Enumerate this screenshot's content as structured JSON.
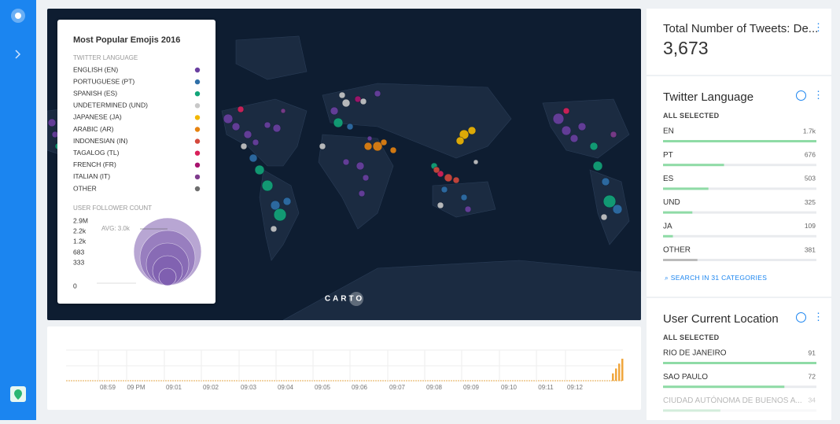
{
  "map_legend": {
    "title": "Most Popular Emojis 2016",
    "language_heading": "TWITTER LANGUAGE",
    "languages": [
      {
        "label": "ENGLISH (EN)",
        "color": "#6a3fa0"
      },
      {
        "label": "PORTUGUESE (PT)",
        "color": "#2f6fa8"
      },
      {
        "label": "SPANISH (ES)",
        "color": "#12a579"
      },
      {
        "label": "UNDETERMINED (UND)",
        "color": "#c8c8c8"
      },
      {
        "label": "JAPANESE (JA)",
        "color": "#f2b701"
      },
      {
        "label": "ARABIC (AR)",
        "color": "#e68310"
      },
      {
        "label": "INDONESIAN (IN)",
        "color": "#d4483c"
      },
      {
        "label": "TAGALOG (TL)",
        "color": "#d9205a"
      },
      {
        "label": "FRENCH (FR)",
        "color": "#a8136e"
      },
      {
        "label": "ITALIAN (IT)",
        "color": "#7f3c8d"
      },
      {
        "label": "OTHER",
        "color": "#6e6e6e"
      }
    ],
    "size_heading": "USER FOLLOWER COUNT",
    "size_labels": [
      "2.9M",
      "2.2k",
      "1.2k",
      "683",
      "333",
      "0"
    ],
    "average": "AVG: 3.0k"
  },
  "map_logo": "CARTO",
  "timeline": {
    "time_labels": [
      "08:59",
      "09 PM",
      "09:01",
      "09:02",
      "09:03",
      "09:04",
      "09:05",
      "09:06",
      "09:07",
      "09:08",
      "09:09",
      "09:10",
      "09:11",
      "09:12"
    ],
    "counts": [
      3,
      5,
      7,
      9
    ]
  },
  "tweet_total": {
    "title": "Total Number of Tweets: De...",
    "value": "3,673"
  },
  "language_widget": {
    "title": "Twitter Language",
    "status": "ALL SELECTED",
    "rows": [
      {
        "name": "EN",
        "value": 1700,
        "value_label": "1.7k"
      },
      {
        "name": "PT",
        "value": 676
      },
      {
        "name": "ES",
        "value": 503
      },
      {
        "name": "UND",
        "value": 325
      },
      {
        "name": "JA",
        "value": 109
      },
      {
        "name": "OTHER",
        "value": 381,
        "other": true
      }
    ],
    "search": "SEARCH IN 31 CATEGORIES"
  },
  "location_widget": {
    "title": "User Current Location",
    "status": "ALL SELECTED",
    "rows": [
      {
        "name": "RIO DE JANEIRO",
        "value": 91
      },
      {
        "name": "SAO PAULO",
        "value": 72
      },
      {
        "name": "CIUDAD AUTÓNOMA DE BUENOS A...",
        "value": 34
      }
    ]
  }
}
